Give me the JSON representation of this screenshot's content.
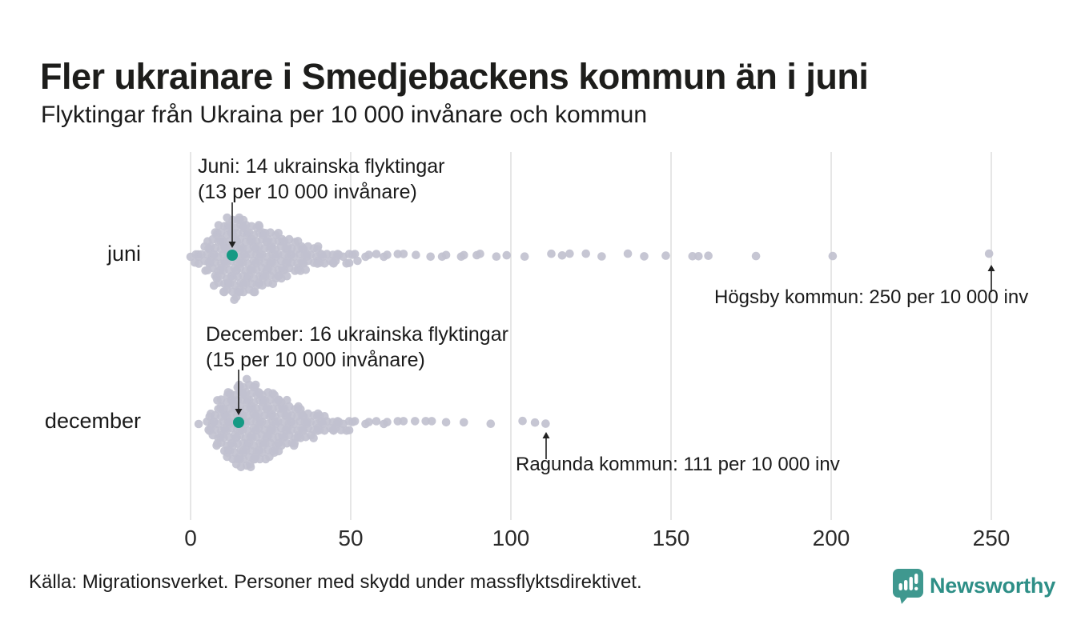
{
  "header": {
    "title": "Fler ukrainare i Smedjebackens kommun än i juni",
    "subtitle": "Flyktingar från Ukraina per 10 000 invånare och kommun"
  },
  "chart_data": {
    "type": "scatter",
    "subtype": "beeswarm",
    "title": "Fler ukrainare i Smedjebackens kommun än i juni",
    "subtitle": "Flyktingar från Ukraina per 10 000 invånare och kommun",
    "xlabel": "Flyktingar från Ukraina per 10 000 invånare",
    "x_ticks": [
      0,
      50,
      100,
      150,
      200,
      250
    ],
    "xlim": [
      0,
      260
    ],
    "grid": "vertical",
    "grid_color": "#d8d8d8",
    "dot_color": "#c1c1cf",
    "highlight_color": "#169a84",
    "series": [
      {
        "id": "juni",
        "label": "juni",
        "bins": [
          [
            0,
            1
          ],
          [
            1,
            1
          ],
          [
            2,
            2
          ],
          [
            3,
            2
          ],
          [
            4,
            3
          ],
          [
            5,
            4
          ],
          [
            6,
            5
          ],
          [
            7,
            7
          ],
          [
            8,
            8
          ],
          [
            9,
            9
          ],
          [
            10,
            10
          ],
          [
            11,
            10
          ],
          [
            12,
            11
          ],
          [
            13,
            12
          ],
          [
            14,
            11
          ],
          [
            15,
            12
          ],
          [
            16,
            11
          ],
          [
            17,
            11
          ],
          [
            18,
            10
          ],
          [
            19,
            10
          ],
          [
            20,
            10
          ],
          [
            21,
            9
          ],
          [
            22,
            9
          ],
          [
            23,
            8
          ],
          [
            24,
            8
          ],
          [
            25,
            8
          ],
          [
            26,
            7
          ],
          [
            27,
            7
          ],
          [
            28,
            6
          ],
          [
            29,
            6
          ],
          [
            30,
            6
          ],
          [
            31,
            5
          ],
          [
            32,
            5
          ],
          [
            33,
            5
          ],
          [
            34,
            4
          ],
          [
            35,
            4
          ],
          [
            36,
            4
          ],
          [
            37,
            3
          ],
          [
            38,
            3
          ],
          [
            39,
            3
          ],
          [
            40,
            3
          ],
          [
            41,
            2
          ],
          [
            42,
            2
          ],
          [
            43,
            2
          ],
          [
            44,
            2
          ],
          [
            45,
            2
          ],
          [
            46,
            2
          ],
          [
            47,
            1
          ],
          [
            48,
            2
          ],
          [
            49,
            1
          ],
          [
            50,
            2
          ],
          [
            52,
            2
          ],
          [
            54,
            1
          ],
          [
            56,
            1
          ],
          [
            58,
            1
          ],
          [
            60,
            1
          ],
          [
            62,
            1
          ],
          [
            64,
            1
          ],
          [
            67,
            1
          ],
          [
            71,
            1
          ],
          [
            75,
            1
          ],
          [
            78,
            1
          ],
          [
            80,
            1
          ],
          [
            84,
            1
          ],
          [
            86,
            1
          ],
          [
            89,
            1
          ],
          [
            91,
            1
          ],
          [
            96,
            1
          ],
          [
            98,
            1
          ],
          [
            105,
            1
          ],
          [
            112,
            1
          ],
          [
            116,
            1
          ],
          [
            118,
            1
          ],
          [
            124,
            1
          ],
          [
            129,
            1
          ],
          [
            136,
            1
          ],
          [
            141,
            1
          ],
          [
            149,
            1
          ],
          [
            156,
            1
          ],
          [
            159,
            1
          ],
          [
            161,
            1
          ],
          [
            177,
            1
          ],
          [
            200,
            1
          ],
          [
            250,
            1
          ]
        ]
      },
      {
        "id": "december",
        "label": "december",
        "bins": [
          [
            3,
            1
          ],
          [
            5,
            2
          ],
          [
            6,
            3
          ],
          [
            7,
            4
          ],
          [
            8,
            6
          ],
          [
            9,
            7
          ],
          [
            10,
            8
          ],
          [
            11,
            9
          ],
          [
            12,
            10
          ],
          [
            13,
            10
          ],
          [
            14,
            11
          ],
          [
            15,
            12
          ],
          [
            16,
            12
          ],
          [
            17,
            13
          ],
          [
            18,
            12
          ],
          [
            19,
            12
          ],
          [
            20,
            11
          ],
          [
            21,
            11
          ],
          [
            22,
            10
          ],
          [
            23,
            10
          ],
          [
            24,
            10
          ],
          [
            25,
            9
          ],
          [
            26,
            9
          ],
          [
            27,
            8
          ],
          [
            28,
            8
          ],
          [
            29,
            7
          ],
          [
            30,
            7
          ],
          [
            31,
            6
          ],
          [
            32,
            6
          ],
          [
            33,
            6
          ],
          [
            34,
            5
          ],
          [
            35,
            5
          ],
          [
            36,
            4
          ],
          [
            37,
            4
          ],
          [
            38,
            4
          ],
          [
            39,
            3
          ],
          [
            40,
            3
          ],
          [
            41,
            3
          ],
          [
            42,
            3
          ],
          [
            43,
            2
          ],
          [
            44,
            2
          ],
          [
            45,
            2
          ],
          [
            46,
            2
          ],
          [
            47,
            2
          ],
          [
            48,
            2
          ],
          [
            49,
            1
          ],
          [
            50,
            2
          ],
          [
            52,
            1
          ],
          [
            54,
            1
          ],
          [
            56,
            1
          ],
          [
            58,
            1
          ],
          [
            60,
            1
          ],
          [
            62,
            1
          ],
          [
            64,
            1
          ],
          [
            67,
            1
          ],
          [
            70,
            1
          ],
          [
            73,
            1
          ],
          [
            76,
            1
          ],
          [
            80,
            1
          ],
          [
            86,
            1
          ],
          [
            93,
            1
          ],
          [
            103,
            1
          ],
          [
            107,
            1
          ],
          [
            111,
            1
          ]
        ]
      }
    ],
    "highlights": [
      {
        "row": "juni",
        "value": 13
      },
      {
        "row": "december",
        "value": 15
      }
    ],
    "notable_points": [
      {
        "row": "juni",
        "municipality": "Högsby kommun",
        "value": 250
      },
      {
        "row": "december",
        "municipality": "Ragunda kommun",
        "value": 111
      }
    ]
  },
  "annotations": [
    {
      "id": "juni-highlight",
      "lines": [
        "Juni: 14 ukrainska flyktingar",
        "(13 per 10 000 invånare)"
      ],
      "row": "juni",
      "value": 13,
      "arrow": "down"
    },
    {
      "id": "december-highlight",
      "lines": [
        "December: 16 ukrainska flyktingar",
        "(15 per 10 000 invånare)"
      ],
      "row": "december",
      "value": 15,
      "arrow": "down"
    },
    {
      "id": "hogsby",
      "text": "Högsby kommun: 250 per 10 000 inv",
      "row": "juni",
      "value": 250,
      "arrow": "up"
    },
    {
      "id": "ragunda",
      "text": "Ragunda kommun: 111 per 10 000 inv",
      "row": "december",
      "value": 111,
      "arrow": "up"
    }
  ],
  "footer": {
    "source": "Källa: Migrationsverket. Personer med skydd under massflyktsdirektivet.",
    "logo_text": "Newsworthy",
    "logo_icon_color": "#3f988f",
    "logo_text_color": "#2e8f87"
  }
}
